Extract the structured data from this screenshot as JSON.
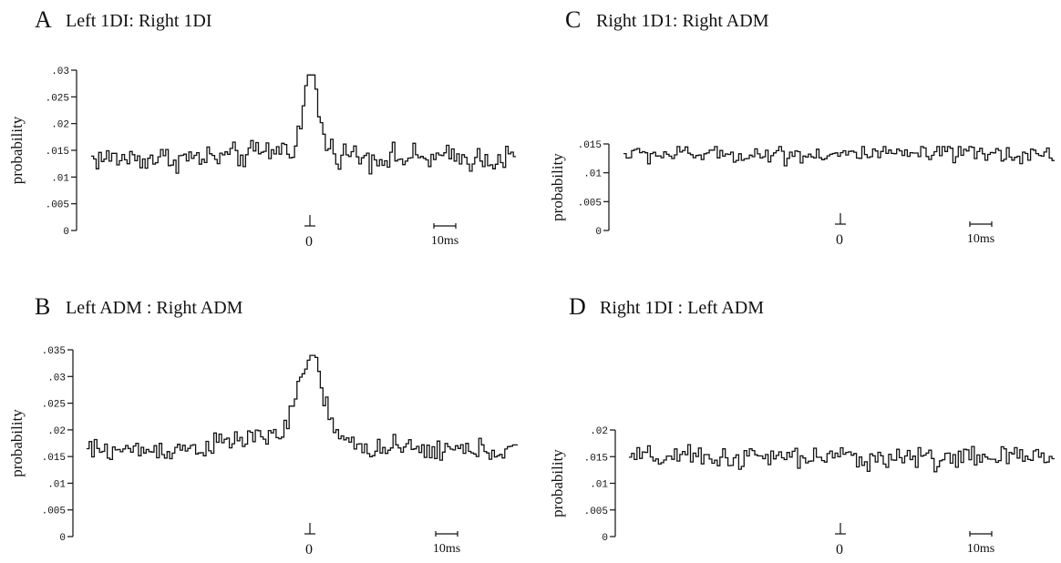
{
  "chart_data": [
    {
      "type": "line",
      "letter": "A",
      "title": "Left 1DI: Right 1DI",
      "ylabel": "probability",
      "yticks": [
        ".03",
        ".025",
        ".02",
        ".015",
        ".01",
        ".005",
        "0"
      ],
      "ylim": [
        0,
        0.03
      ],
      "zero_label": "0",
      "scale_bar_label": "10ms",
      "x_range_ms": [
        -60,
        40
      ],
      "bins_ms": 0.5,
      "baseline": 0.0135,
      "noise": 0.0017,
      "peak": {
        "center_ms": 0,
        "amplitude": 0.0145,
        "width_ms": 1.3
      },
      "bump": {
        "center_ms": -2,
        "amplitude": 0.002,
        "width_ms": 7
      }
    },
    {
      "type": "line",
      "letter": "B",
      "title": "Left ADM : Right  ADM",
      "ylabel": "probability",
      "yticks": [
        ".035",
        ".03",
        ".025",
        ".02",
        ".015",
        ".01",
        ".005",
        "0"
      ],
      "ylim": [
        0,
        0.035
      ],
      "zero_label": "0",
      "scale_bar_label": "10ms",
      "x_range_ms": [
        -60,
        40
      ],
      "bins_ms": 0.5,
      "baseline": 0.0162,
      "noise": 0.0015,
      "peak": {
        "center_ms": 0,
        "amplitude": 0.0155,
        "width_ms": 2.2
      },
      "bump": {
        "center_ms": -5,
        "amplitude": 0.003,
        "width_ms": 9
      }
    },
    {
      "type": "line",
      "letter": "C",
      "title": "Right 1D1: Right ADM",
      "ylabel": "probability",
      "yticks": [
        ".015",
        ".01",
        ".005",
        "0"
      ],
      "ylim": [
        0,
        0.015
      ],
      "zero_label": "0",
      "scale_bar_label": "10ms",
      "x_range_ms": [
        -60,
        40
      ],
      "bins_ms": 0.5,
      "baseline": 0.0132,
      "noise": 0.0011,
      "peak": {
        "center_ms": 0,
        "amplitude": 0.0,
        "width_ms": 1
      },
      "bump": {
        "center_ms": 0,
        "amplitude": 0.0,
        "width_ms": 1
      }
    },
    {
      "type": "line",
      "letter": "D",
      "title": "Right 1DI : Left ADM",
      "ylabel": "probability",
      "yticks": [
        ".02",
        ".015",
        ".01",
        ".005",
        "0"
      ],
      "ylim": [
        0,
        0.02
      ],
      "zero_label": "0",
      "scale_bar_label": "10ms",
      "x_range_ms": [
        -60,
        40
      ],
      "bins_ms": 0.5,
      "baseline": 0.0148,
      "noise": 0.0015,
      "peak": {
        "center_ms": 0,
        "amplitude": 0.0,
        "width_ms": 1
      },
      "bump": {
        "center_ms": 0,
        "amplitude": 0.0,
        "width_ms": 1
      }
    }
  ]
}
